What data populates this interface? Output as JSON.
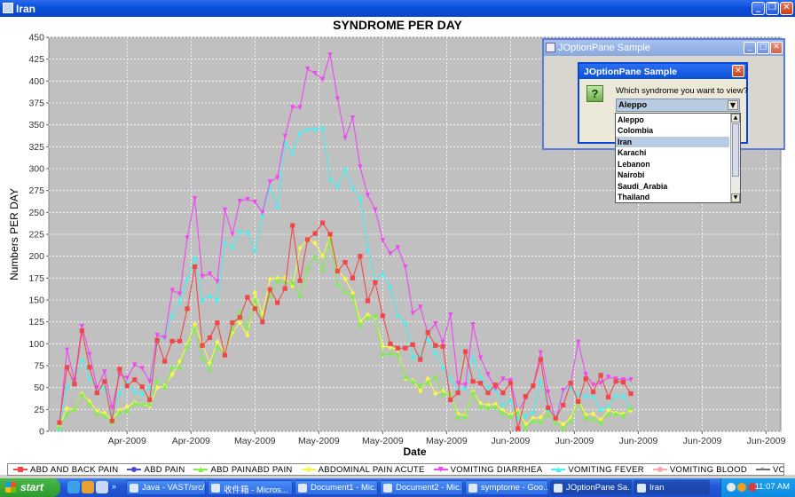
{
  "window": {
    "title": "Iran"
  },
  "chart_data": {
    "type": "line",
    "title": "SYNDROME PER DAY",
    "xlabel": "Date",
    "ylabel": "Numbers PER DAY",
    "ylim": [
      0,
      450
    ],
    "yticks": [
      0,
      25,
      50,
      75,
      100,
      125,
      150,
      175,
      200,
      225,
      250,
      275,
      300,
      325,
      350,
      375,
      400,
      425,
      450
    ],
    "x_tick_labels": [
      "Apr-2009",
      "Apr-2009",
      "May-2009",
      "May-2009",
      "May-2009",
      "May-2009",
      "Jun-2009",
      "Jun-2009",
      "Jun-2009",
      "Jun-2009",
      "Jun-2009"
    ],
    "x_tick_positions": [
      9,
      17.5,
      26,
      34.5,
      43,
      51.5,
      60,
      68.5,
      77,
      85.5,
      94
    ],
    "x_count": 96,
    "grid": true,
    "legend": "bottom",
    "series": [
      {
        "name": "ABD AND BACK PAIN",
        "color": "#f04848",
        "marker": "square",
        "values": [
          10,
          73,
          54,
          115,
          73,
          44,
          57,
          12,
          71,
          52,
          59,
          51,
          36,
          104,
          80,
          103,
          103,
          140,
          188,
          98,
          107,
          124,
          87,
          124,
          130,
          153,
          140,
          125,
          162,
          147,
          163,
          235,
          172,
          219,
          226,
          238,
          225,
          183,
          193,
          175,
          200,
          149,
          170,
          132,
          100,
          95,
          95,
          99,
          82,
          113,
          98,
          97,
          36,
          44,
          91,
          57,
          55,
          44,
          53,
          44,
          55,
          3,
          40,
          52,
          82,
          27,
          15,
          30,
          55,
          34,
          60,
          45,
          64,
          39,
          57,
          56,
          43
        ]
      },
      {
        "name": "ABD PAIN",
        "color": "#4a4ad8",
        "marker": "circle",
        "values": []
      },
      {
        "name": "ABD PAINABD PAIN",
        "color": "#7cf048",
        "marker": "triangle",
        "values": [
          5,
          20,
          25,
          42,
          31,
          20,
          18,
          10,
          22,
          23,
          32,
          31,
          31,
          58,
          50,
          73,
          73,
          97,
          118,
          84,
          71,
          97,
          89,
          117,
          137,
          118,
          150,
          128,
          155,
          172,
          170,
          170,
          155,
          186,
          200,
          185,
          219,
          168,
          159,
          154,
          121,
          130,
          132,
          88,
          89,
          88,
          62,
          57,
          52,
          56,
          62,
          42,
          43,
          16,
          17,
          44,
          28,
          27,
          28,
          21,
          17,
          22,
          4,
          12,
          11,
          19,
          10,
          3,
          12,
          34,
          15,
          14,
          10,
          20,
          20,
          18,
          27
        ]
      },
      {
        "name": "ABDOMINAL PAIN ACUTE",
        "color": "#f8f848",
        "marker": "diamond",
        "values": [
          6,
          26,
          25,
          43,
          34,
          23,
          21,
          13,
          24,
          28,
          33,
          31,
          29,
          50,
          52,
          65,
          80,
          99,
          122,
          100,
          78,
          102,
          90,
          113,
          124,
          110,
          158,
          134,
          174,
          175,
          175,
          166,
          209,
          220,
          215,
          200,
          222,
          185,
          174,
          158,
          126,
          133,
          130,
          97,
          96,
          93,
          60,
          58,
          46,
          60,
          43,
          46,
          42,
          20,
          18,
          45,
          32,
          30,
          31,
          24,
          19,
          24,
          8,
          15,
          16,
          28,
          14,
          8,
          15,
          36,
          19,
          20,
          13,
          24,
          21,
          20,
          24
        ]
      },
      {
        "name": "VOMITING   DIARRHEA",
        "color": "#f048f0",
        "marker": "triangle-down",
        "values": [
          7,
          93,
          58,
          120,
          88,
          50,
          68,
          27,
          65,
          61,
          76,
          72,
          57,
          110,
          107,
          161,
          157,
          221,
          266,
          177,
          180,
          171,
          253,
          225,
          263,
          265,
          262,
          250,
          285,
          290,
          337,
          370,
          370,
          414,
          409,
          402,
          430,
          380,
          335,
          358,
          302,
          270,
          253,
          218,
          203,
          210,
          188,
          135,
          142,
          112,
          123,
          102,
          133,
          55,
          53,
          122,
          84,
          65,
          49,
          60,
          58,
          22,
          38,
          52,
          90,
          45,
          12,
          47,
          55,
          102,
          65,
          53,
          55,
          62,
          60,
          59,
          59
        ]
      },
      {
        "name": "VOMITING   FEVER",
        "color": "#48f0f0",
        "marker": "triangle",
        "values": [
          3,
          51,
          60,
          82,
          61,
          48,
          50,
          18,
          44,
          57,
          46,
          43,
          50,
          100,
          109,
          132,
          149,
          174,
          198,
          150,
          155,
          150,
          216,
          210,
          229,
          227,
          206,
          247,
          279,
          256,
          330,
          318,
          341,
          345,
          345,
          347,
          288,
          280,
          300,
          278,
          266,
          208,
          172,
          180,
          165,
          132,
          124,
          85,
          87,
          106,
          90,
          73,
          60,
          48,
          50,
          84,
          62,
          50,
          48,
          30,
          35,
          15,
          18,
          22,
          58,
          25,
          15,
          48,
          50,
          42,
          40,
          40,
          25,
          28,
          41,
          40,
          25
        ]
      },
      {
        "name": "VOMITING BLOOD",
        "color": "#f8a8a8",
        "marker": "circle",
        "values": []
      },
      {
        "name": "VOMITTING",
        "color": "#707070",
        "marker": "cross",
        "values": []
      }
    ]
  },
  "dialog": {
    "outer_title": "JOptionPane Sample",
    "inner_title": "JOptionPane Sample",
    "question": "Which syndrome you want to view?",
    "selected": "Aleppo",
    "options": [
      "Aleppo",
      "Colombia",
      "Iran",
      "Karachi",
      "Lebanon",
      "Nairobi",
      "Saudi_Arabia",
      "Thailand"
    ],
    "highlighted": "Iran"
  },
  "taskbar": {
    "start_label": "start",
    "tasks": [
      {
        "label": "Java - VAST/src/...",
        "active": false
      },
      {
        "label": "收件箱 - Micros...",
        "active": false
      },
      {
        "label": "Document1 - Mic...",
        "active": false
      },
      {
        "label": "Document2 - Mic...",
        "active": false
      },
      {
        "label": "symptome - Goo...",
        "active": false
      },
      {
        "label": "JOptionPane Sa...",
        "active": true
      },
      {
        "label": "Iran",
        "active": true
      }
    ],
    "clock": "11:07 AM"
  }
}
